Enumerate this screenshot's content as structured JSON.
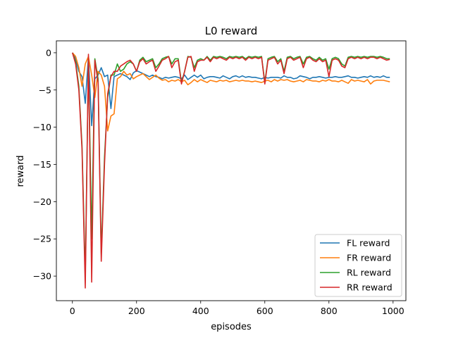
{
  "chart_data": {
    "type": "line",
    "title": "L0 reward",
    "xlabel": "episodes",
    "ylabel": "reward",
    "xlim": [
      -50,
      1040
    ],
    "ylim": [
      -33.3,
      1.6
    ],
    "xticks": [
      0,
      200,
      400,
      600,
      800,
      1000
    ],
    "yticks": [
      0,
      -5,
      -10,
      -15,
      -20,
      -25,
      -30
    ],
    "xtick_labels": [
      "0",
      "200",
      "400",
      "600",
      "800",
      "1000"
    ],
    "ytick_labels": [
      "0",
      "−5",
      "−10",
      "−15",
      "−20",
      "−25",
      "−30"
    ],
    "grid": false,
    "legend_position": "lower-right",
    "x": [
      0,
      10,
      20,
      30,
      40,
      50,
      60,
      70,
      80,
      90,
      100,
      110,
      120,
      130,
      140,
      150,
      160,
      170,
      180,
      190,
      200,
      210,
      220,
      230,
      240,
      250,
      260,
      270,
      280,
      290,
      300,
      310,
      320,
      330,
      340,
      350,
      360,
      370,
      380,
      390,
      400,
      410,
      420,
      430,
      440,
      450,
      460,
      470,
      480,
      490,
      500,
      510,
      520,
      530,
      540,
      550,
      560,
      570,
      580,
      590,
      600,
      610,
      620,
      630,
      640,
      650,
      660,
      670,
      680,
      690,
      700,
      710,
      720,
      730,
      740,
      750,
      760,
      770,
      780,
      790,
      800,
      810,
      820,
      830,
      840,
      850,
      860,
      870,
      880,
      890,
      900,
      910,
      920,
      930,
      940,
      950,
      960,
      970,
      980,
      990
    ],
    "series": [
      {
        "name": "FL reward",
        "color": "#1f77b4",
        "values": [
          0,
          -0.8,
          -2.5,
          -3.2,
          -6.8,
          -0.5,
          -9.8,
          -3.5,
          -3.0,
          -2.0,
          -3.2,
          -3.0,
          -7.5,
          -3.2,
          -3.0,
          -2.8,
          -3.0,
          -3.2,
          -3.6,
          -2.7,
          -2.4,
          -2.6,
          -2.8,
          -3.0,
          -3.2,
          -3.0,
          -3.2,
          -3.3,
          -3.5,
          -3.3,
          -3.4,
          -3.3,
          -3.2,
          -3.3,
          -3.5,
          -3.0,
          -3.6,
          -3.3,
          -3.0,
          -3.3,
          -3.0,
          -3.5,
          -3.3,
          -3.2,
          -3.2,
          -3.3,
          -3.4,
          -3.1,
          -3.3,
          -3.5,
          -3.2,
          -3.1,
          -3.3,
          -3.1,
          -3.3,
          -3.2,
          -3.3,
          -3.3,
          -3.4,
          -3.5,
          -3.3,
          -3.4,
          -3.3,
          -3.3,
          -3.3,
          -3.4,
          -3.1,
          -3.3,
          -3.3,
          -3.5,
          -3.4,
          -3.1,
          -3.2,
          -3.3,
          -3.5,
          -3.3,
          -3.3,
          -3.2,
          -3.3,
          -3.4,
          -3.3,
          -3.3,
          -3.2,
          -3.3,
          -3.3,
          -3.2,
          -3.1,
          -3.3,
          -3.3,
          -3.4,
          -3.3,
          -3.2,
          -3.3,
          -3.1,
          -3.3,
          -3.2,
          -3.3,
          -3.1,
          -3.3,
          -3.3
        ]
      },
      {
        "name": "FR reward",
        "color": "#ff7f0e",
        "values": [
          0,
          -0.5,
          -2.0,
          -4.5,
          -1.5,
          -0.5,
          -3.0,
          -6.0,
          -2.5,
          -3.0,
          -4.5,
          -10.5,
          -8.5,
          -8.2,
          -3.5,
          -3.2,
          -2.5,
          -3.0,
          -2.8,
          -3.5,
          -3.2,
          -3.0,
          -2.8,
          -3.2,
          -3.6,
          -3.3,
          -3.0,
          -3.4,
          -3.7,
          -3.6,
          -3.9,
          -3.7,
          -3.8,
          -3.6,
          -3.9,
          -3.7,
          -4.3,
          -4.0,
          -3.6,
          -3.9,
          -3.6,
          -3.8,
          -4.0,
          -3.7,
          -3.8,
          -3.9,
          -3.7,
          -3.8,
          -3.7,
          -3.9,
          -3.8,
          -3.7,
          -3.8,
          -3.7,
          -3.8,
          -3.8,
          -3.9,
          -3.8,
          -3.9,
          -4.0,
          -3.8,
          -3.7,
          -3.9,
          -3.6,
          -3.8,
          -3.6,
          -3.7,
          -3.6,
          -3.8,
          -3.9,
          -3.8,
          -3.7,
          -3.9,
          -3.6,
          -3.7,
          -3.8,
          -3.8,
          -3.9,
          -3.7,
          -3.8,
          -3.6,
          -3.8,
          -3.8,
          -3.9,
          -3.7,
          -3.9,
          -4.1,
          -3.6,
          -3.8,
          -3.7,
          -3.8,
          -3.9,
          -3.6,
          -4.2,
          -3.8,
          -3.7,
          -3.7,
          -3.7,
          -3.8,
          -3.9
        ]
      },
      {
        "name": "RL reward",
        "color": "#2ca02c",
        "values": [
          0,
          -1.2,
          -4.5,
          -12.5,
          -30.0,
          -0.8,
          -25.0,
          -0.8,
          -3.5,
          -27.0,
          -14.0,
          -6.0,
          -3.0,
          -3.0,
          -1.5,
          -2.5,
          -2.2,
          -1.5,
          -1.2,
          -1.5,
          -2.5,
          -1.0,
          -0.6,
          -1.2,
          -1.0,
          -0.8,
          -2.0,
          -1.5,
          -0.8,
          -0.6,
          -0.5,
          -1.5,
          -0.8,
          -0.8,
          -4.0,
          -2.5,
          -0.5,
          -0.6,
          -2.0,
          -1.0,
          -0.8,
          -1.0,
          -0.5,
          -1.0,
          -0.5,
          -0.6,
          -0.5,
          -0.6,
          -0.8,
          -0.5,
          -0.6,
          -0.5,
          -0.6,
          -0.5,
          -0.8,
          -0.5,
          -0.6,
          -0.5,
          -0.6,
          -0.5,
          -4.0,
          -0.8,
          -0.6,
          -0.5,
          -1.2,
          -0.8,
          -2.5,
          -0.6,
          -0.5,
          -0.8,
          -0.6,
          -0.5,
          -1.5,
          -0.6,
          -0.5,
          -0.8,
          -1.0,
          -0.6,
          -1.0,
          -0.8,
          -2.2,
          -0.8,
          -0.6,
          -0.8,
          -1.5,
          -1.8,
          -0.6,
          -0.5,
          -0.6,
          -0.5,
          -0.6,
          -0.5,
          -0.6,
          -0.5,
          -0.5,
          -0.6,
          -0.5,
          -0.6,
          -0.8,
          -0.8
        ]
      },
      {
        "name": "RR reward",
        "color": "#d62728",
        "values": [
          0,
          -1.5,
          -5.0,
          -13.0,
          -31.6,
          -0.2,
          -30.8,
          -1.0,
          -4.0,
          -28.0,
          -15.0,
          -5.5,
          -3.2,
          -2.5,
          -2.5,
          -1.8,
          -1.5,
          -1.2,
          -1.0,
          -1.5,
          -2.5,
          -1.2,
          -0.8,
          -1.5,
          -1.2,
          -1.0,
          -2.5,
          -1.8,
          -1.0,
          -0.8,
          -0.5,
          -2.0,
          -1.2,
          -1.0,
          -4.2,
          -2.5,
          -0.6,
          -0.5,
          -2.5,
          -1.2,
          -1.0,
          -1.0,
          -0.6,
          -1.2,
          -0.6,
          -0.8,
          -0.6,
          -0.8,
          -1.0,
          -0.6,
          -0.8,
          -0.6,
          -0.8,
          -0.6,
          -1.0,
          -0.6,
          -0.8,
          -0.6,
          -0.8,
          -0.6,
          -4.2,
          -1.0,
          -0.8,
          -0.6,
          -1.5,
          -1.0,
          -2.8,
          -0.8,
          -0.6,
          -1.0,
          -0.8,
          -0.6,
          -2.0,
          -0.8,
          -0.6,
          -1.0,
          -1.2,
          -0.8,
          -1.2,
          -1.0,
          -3.2,
          -1.0,
          -0.8,
          -1.0,
          -1.8,
          -2.0,
          -0.8,
          -0.6,
          -0.8,
          -0.6,
          -0.8,
          -0.6,
          -0.8,
          -0.6,
          -0.6,
          -0.8,
          -0.6,
          -0.8,
          -1.0,
          -0.9
        ]
      }
    ]
  }
}
